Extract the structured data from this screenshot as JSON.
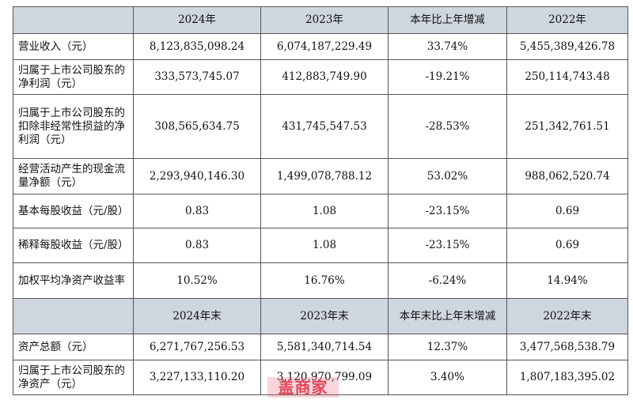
{
  "header1": [
    "",
    "2024年",
    "2023年",
    "本年比上年增减",
    "2022年"
  ],
  "rows1": [
    {
      "label": "营业收入（元）",
      "v2024": "8,123,835,098.24",
      "v2023": "6,074,187,229.49",
      "chg": "33.74%",
      "v2022": "5,455,389,426.78"
    },
    {
      "label": "归属于上市公司股东的净利润（元）",
      "v2024": "333,573,745.07",
      "v2023": "412,883,749.90",
      "chg": "-19.21%",
      "v2022": "250,114,743.48"
    },
    {
      "label": "归属于上市公司股东的扣除非经常性损益的净利润（元）",
      "v2024": "308,565,634.75",
      "v2023": "431,745,547.53",
      "chg": "-28.53%",
      "v2022": "251,342,761.51"
    },
    {
      "label": "经营活动产生的现金流量净额（元）",
      "v2024": "2,293,940,146.30",
      "v2023": "1,499,078,788.12",
      "chg": "53.02%",
      "v2022": "988,062,520.74"
    },
    {
      "label": "基本每股收益（元/股）",
      "v2024": "0.83",
      "v2023": "1.08",
      "chg": "-23.15%",
      "v2022": "0.69"
    },
    {
      "label": "稀释每股收益（元/股）",
      "v2024": "0.83",
      "v2023": "1.08",
      "chg": "-23.15%",
      "v2022": "0.69"
    },
    {
      "label": "加权平均净资产收益率",
      "v2024": "10.52%",
      "v2023": "16.76%",
      "chg": "-6.24%",
      "v2022": "14.94%"
    }
  ],
  "header2": [
    "",
    "2024年末",
    "2023年末",
    "本年末比上年末增减",
    "2022年末"
  ],
  "rows2": [
    {
      "label": "资产总额（元）",
      "v2024": "6,271,767,256.53",
      "v2023": "5,581,340,714.54",
      "chg": "12.37%",
      "v2022": "3,477,568,538.79"
    },
    {
      "label": "归属于上市公司股东的净资产（元）",
      "v2024": "3,227,133,110.20",
      "v2023": "3,120,970,799.09",
      "chg": "3.40%",
      "v2022": "1,807,183,395.02"
    }
  ],
  "watermark": "盖商家"
}
